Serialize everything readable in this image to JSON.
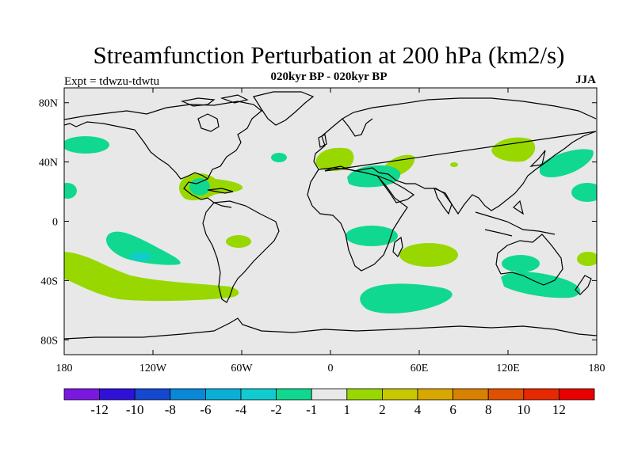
{
  "figure": {
    "title": "Streamfunction Perturbation at 200 hPa (km2/s)",
    "subtitle": "020kyr BP - 020kyr BP",
    "left_string": "Expt = tdwzu-tdwtu",
    "right_string": "JJA"
  },
  "axes": {
    "lon_labels": [
      "180",
      "120W",
      "60W",
      "0",
      "60E",
      "120E",
      "180"
    ],
    "lon_values": [
      -180,
      -120,
      -60,
      0,
      60,
      120,
      180
    ],
    "lat_labels": [
      "80N",
      "40N",
      "0",
      "40S",
      "80S"
    ],
    "lat_values": [
      80,
      40,
      0,
      -40,
      -80
    ],
    "lon_range": [
      -180,
      180
    ],
    "lat_range": [
      -90,
      90
    ]
  },
  "colorbar": {
    "labels": [
      "-12",
      "-10",
      "-8",
      "-6",
      "-4",
      "-2",
      "-1",
      "1",
      "2",
      "4",
      "6",
      "8",
      "10",
      "12"
    ],
    "colors": [
      "#7a18e0",
      "#2e10d8",
      "#1448d0",
      "#0a88d8",
      "#08b0d8",
      "#10ccd0",
      "#10d890",
      "#e8e8e8",
      "#98d800",
      "#c8c800",
      "#d8a800",
      "#d88000",
      "#e05000",
      "#e82800",
      "#e80000"
    ]
  },
  "chart_data": {
    "type": "map",
    "variable": "Streamfunction perturbation at 200 hPa",
    "units": "km2/s",
    "season": "JJA",
    "missing_color": "#e8e8e8",
    "anomalies": [
      {
        "lon": -160,
        "lat": 50,
        "range": "-2 to -1"
      },
      {
        "lon": -178,
        "lat": 22,
        "range": "-2 to -1"
      },
      {
        "lon": -140,
        "lat": -22,
        "range": "-2 to -1"
      },
      {
        "lon": -125,
        "lat": -24,
        "range": "-4 to -2"
      },
      {
        "lon": -92,
        "lat": 24,
        "range": "1 to 2"
      },
      {
        "lon": -92,
        "lat": 24,
        "range": "-2 to -1"
      },
      {
        "lon": -155,
        "lat": -38,
        "range": "1 to 2"
      },
      {
        "lon": -60,
        "lat": -13,
        "range": "1 to 2"
      },
      {
        "lon": -35,
        "lat": 42,
        "range": "-2 to -1"
      },
      {
        "lon": 10,
        "lat": 44,
        "range": "1 to 2"
      },
      {
        "lon": 40,
        "lat": 38,
        "range": "1 to 2"
      },
      {
        "lon": 40,
        "lat": 33,
        "range": "-2 to -1"
      },
      {
        "lon": 83,
        "lat": 38,
        "range": "1 to 2"
      },
      {
        "lon": 33,
        "lat": -8,
        "range": "-2 to -1"
      },
      {
        "lon": 63,
        "lat": -21,
        "range": "1 to 2"
      },
      {
        "lon": 45,
        "lat": -50,
        "range": "-2 to -1"
      },
      {
        "lon": 120,
        "lat": 49,
        "range": "1 to 2"
      },
      {
        "lon": 160,
        "lat": 42,
        "range": "-2 to -1"
      },
      {
        "lon": 175,
        "lat": 20,
        "range": "-2 to -1"
      },
      {
        "lon": 123,
        "lat": -30,
        "range": "-2 to -1"
      },
      {
        "lon": 140,
        "lat": -42,
        "range": "-2 to -1"
      },
      {
        "lon": 176,
        "lat": -22,
        "range": "1 to 2"
      }
    ]
  }
}
